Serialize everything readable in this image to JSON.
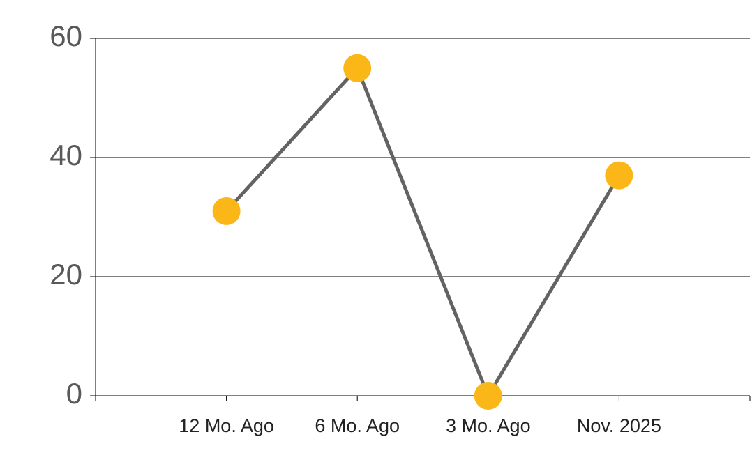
{
  "chart_data": {
    "type": "line",
    "categories": [
      null,
      "12 Mo. Ago",
      "6 Mo. Ago",
      "3 Mo. Ago",
      "Nov. 2025",
      null
    ],
    "values": [
      null,
      31,
      55,
      0,
      37,
      null
    ],
    "line_color": "#636363",
    "marker_color": "#FBB617",
    "ylim": [
      0,
      60
    ],
    "yticks": [
      0,
      20,
      40,
      60
    ],
    "grid": true
  }
}
